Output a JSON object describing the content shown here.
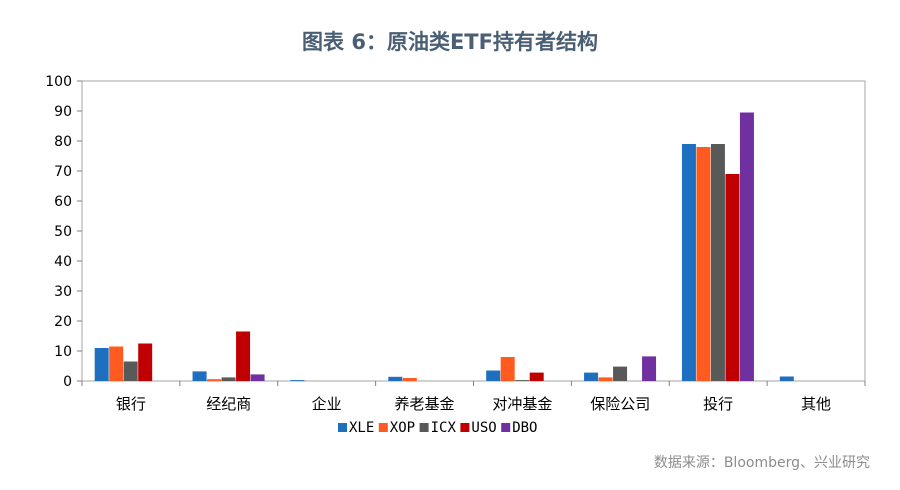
{
  "title": "图表 6：原油类ETF持有者结构",
  "source": "数据来源：Bloomberg、兴业研究",
  "chart_data": {
    "type": "bar",
    "title": "图表 6：原油类ETF持有者结构",
    "xlabel": "",
    "ylabel": "",
    "ylim": [
      0,
      100
    ],
    "yticks": [
      0,
      10,
      20,
      30,
      40,
      50,
      60,
      70,
      80,
      90,
      100
    ],
    "grid": false,
    "legend_position": "bottom",
    "categories": [
      "银行",
      "经纪商",
      "企业",
      "养老基金",
      "对冲基金",
      "保险公司",
      "投行",
      "其他"
    ],
    "series": [
      {
        "name": "XLE",
        "color": "#1f6fc0",
        "values": [
          11,
          3.2,
          0.3,
          1.4,
          3.5,
          2.8,
          79,
          1.5
        ]
      },
      {
        "name": "XOP",
        "color": "#ff5a1f",
        "values": [
          11.5,
          0.6,
          0,
          1,
          8,
          1.2,
          78,
          0
        ]
      },
      {
        "name": "ICX",
        "color": "#595959",
        "values": [
          6.5,
          1.2,
          0,
          0,
          0.3,
          4.8,
          79,
          0
        ]
      },
      {
        "name": "USO",
        "color": "#c00000",
        "values": [
          12.5,
          16.5,
          0,
          0,
          2.8,
          0,
          69,
          0
        ]
      },
      {
        "name": "DBO",
        "color": "#7030a0",
        "values": [
          0,
          2.2,
          0,
          0,
          0,
          8.2,
          89.5,
          0
        ]
      }
    ]
  }
}
